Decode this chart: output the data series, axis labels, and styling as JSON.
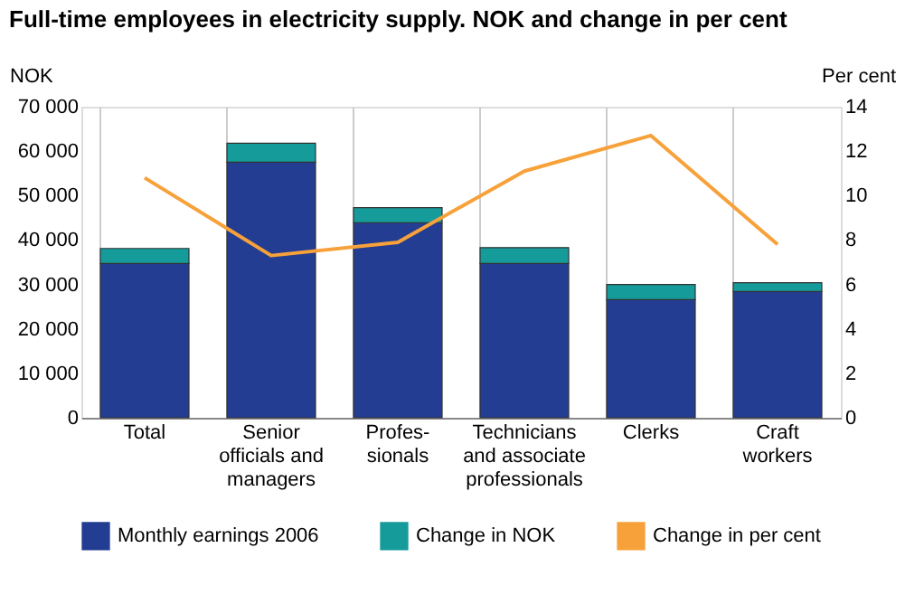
{
  "chart_data": {
    "type": "bar",
    "title": "Full-time employees in electricity supply. NOK and change in per cent",
    "categories": [
      "Total",
      "Senior\nofficials and\nmanagers",
      "Profes-\nsionals",
      "Technicians\nand associate\nprofessionals",
      "Clerks",
      "Craft\nworkers"
    ],
    "stacked": true,
    "series": [
      {
        "name": "Monthly earnings 2006",
        "color": "#233d92",
        "values": [
          34700,
          57500,
          43900,
          34700,
          26600,
          28400
        ]
      },
      {
        "name": "Change in NOK",
        "color": "#169b9b",
        "values": [
          3400,
          4300,
          3400,
          3600,
          3400,
          2000
        ]
      },
      {
        "name": "Change in per cent",
        "color": "#f7a13a",
        "type": "line",
        "axis": "y2",
        "values": [
          10.8,
          7.3,
          7.9,
          11.1,
          12.7,
          7.8
        ]
      }
    ],
    "ylabel": "NOK",
    "y2label": "Per cent",
    "ylim": [
      0,
      70000
    ],
    "yticks": [
      0,
      10000,
      20000,
      30000,
      40000,
      50000,
      60000,
      70000
    ],
    "y2lim": [
      0,
      14
    ],
    "y2ticks": [
      0,
      2,
      4,
      6,
      8,
      10,
      12,
      14
    ],
    "grid": "x",
    "legend": "bottom"
  }
}
